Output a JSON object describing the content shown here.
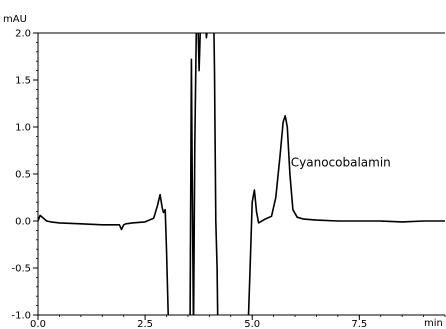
{
  "chart_data": {
    "type": "line",
    "y_unit": "mAU",
    "x_unit": "min",
    "xlim": [
      0,
      9.5
    ],
    "ylim": [
      -1.0,
      2.0
    ],
    "y_ticks": [
      "2.0",
      "1.5",
      "1.0",
      "0.5",
      "0.0",
      "-0.5",
      "-1.0"
    ],
    "y_tick_values": [
      2.0,
      1.5,
      1.0,
      0.5,
      0.0,
      -0.5,
      -1.0
    ],
    "x_ticks": [
      "0.0",
      "2.5",
      "5.0",
      "7.5"
    ],
    "x_tick_values": [
      0.0,
      2.5,
      5.0,
      7.5
    ],
    "minor_x_step": 0.5,
    "minor_y_step": 0.1,
    "grid": false,
    "annotation": {
      "text": "Cyanocobalamin",
      "x": 5.9,
      "y": 0.58
    },
    "series": [
      {
        "color": "#000000",
        "x": [
          0.0,
          0.05,
          0.1,
          0.2,
          0.3,
          0.5,
          1.0,
          1.5,
          1.9,
          1.95,
          2.0,
          2.05,
          2.2,
          2.5,
          2.7,
          2.78,
          2.85,
          2.9,
          2.93,
          2.97,
          3.0,
          3.05,
          3.1,
          3.13,
          3.5,
          3.55,
          3.58,
          3.6,
          3.63,
          3.66,
          3.7,
          3.73,
          3.76,
          3.8,
          3.9,
          3.93,
          4.0,
          4.1,
          4.12,
          4.15,
          4.18,
          4.2,
          4.25,
          4.3,
          4.4,
          4.5,
          4.6,
          4.7,
          4.8,
          4.9,
          4.95,
          5.0,
          5.05,
          5.1,
          5.15,
          5.3,
          5.45,
          5.55,
          5.65,
          5.72,
          5.77,
          5.82,
          5.88,
          5.95,
          6.05,
          6.2,
          6.5,
          7.0,
          7.5,
          8.0,
          8.5,
          9.0,
          9.5
        ],
        "y": [
          0.0,
          0.06,
          0.04,
          0.0,
          -0.01,
          -0.02,
          -0.03,
          -0.04,
          -0.04,
          -0.09,
          -0.04,
          -0.03,
          -0.02,
          -0.01,
          0.03,
          0.15,
          0.28,
          0.14,
          0.09,
          0.12,
          -0.3,
          -1.2,
          -1.2,
          -1.2,
          -1.2,
          -1.0,
          1.72,
          0.5,
          -1.2,
          0.8,
          2.2,
          2.2,
          1.6,
          2.2,
          2.2,
          1.95,
          2.2,
          2.2,
          1.6,
          0.0,
          -0.5,
          -1.2,
          -1.2,
          -1.2,
          -1.2,
          -1.2,
          -1.2,
          -1.2,
          -1.2,
          -1.2,
          -0.5,
          0.2,
          0.33,
          0.1,
          -0.02,
          0.02,
          0.05,
          0.25,
          0.7,
          1.05,
          1.12,
          1.0,
          0.5,
          0.12,
          0.04,
          0.02,
          0.01,
          0.0,
          0.0,
          0.0,
          -0.01,
          0.0,
          0.0
        ]
      }
    ]
  }
}
